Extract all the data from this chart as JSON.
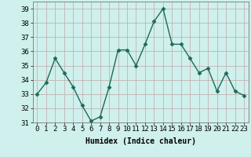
{
  "x": [
    0,
    1,
    2,
    3,
    4,
    5,
    6,
    7,
    8,
    9,
    10,
    11,
    12,
    13,
    14,
    15,
    16,
    17,
    18,
    19,
    20,
    21,
    22,
    23
  ],
  "y": [
    33.0,
    33.8,
    35.5,
    34.5,
    33.5,
    32.2,
    31.1,
    31.4,
    33.5,
    36.1,
    36.1,
    35.0,
    36.5,
    38.1,
    39.0,
    36.5,
    36.5,
    35.5,
    34.5,
    34.8,
    33.2,
    34.5,
    33.2,
    32.9
  ],
  "xlabel": "Humidex (Indice chaleur)",
  "line_color": "#1a6b5a",
  "marker": "D",
  "markersize": 2.5,
  "linewidth": 1.0,
  "background_color": "#cff0ec",
  "grid_color": "#c0a8a8",
  "ylim": [
    31,
    39.5
  ],
  "yticks": [
    31,
    32,
    33,
    34,
    35,
    36,
    37,
    38,
    39
  ],
  "xticks": [
    0,
    1,
    2,
    3,
    4,
    5,
    6,
    7,
    8,
    9,
    10,
    11,
    12,
    13,
    14,
    15,
    16,
    17,
    18,
    19,
    20,
    21,
    22,
    23
  ],
  "xlabel_fontsize": 7,
  "tick_fontsize": 6.5
}
